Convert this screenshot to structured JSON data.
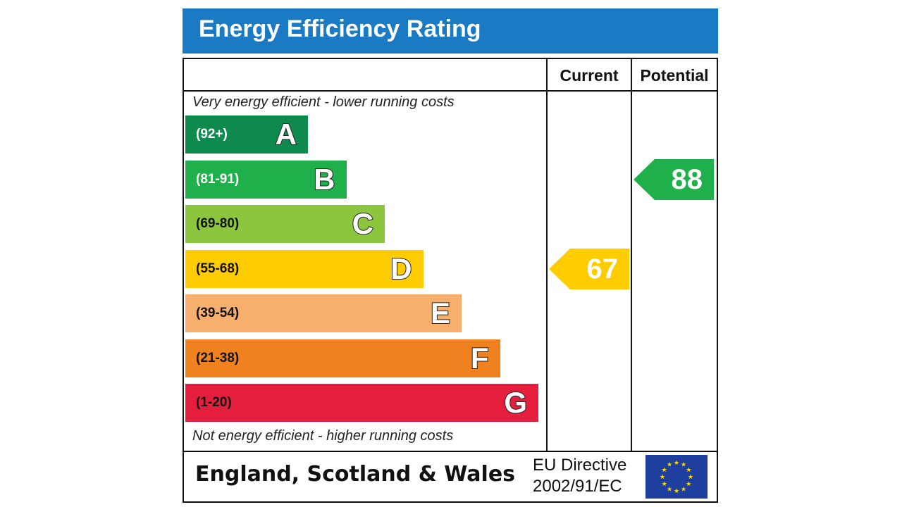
{
  "header": {
    "title": "Energy Efficiency Rating"
  },
  "columns": {
    "current": "Current",
    "potential": "Potential"
  },
  "notes": {
    "top": "Very energy efficient - lower running costs",
    "bottom": "Not energy efficient - higher running costs"
  },
  "footer": {
    "region": "England, Scotland & Wales",
    "directive_line1": "EU Directive",
    "directive_line2": "2002/91/EC"
  },
  "chart_data": {
    "type": "bar",
    "categories": [
      "A",
      "B",
      "C",
      "D",
      "E",
      "F",
      "G"
    ],
    "ranges": [
      "(92+)",
      "(81-91)",
      "(69-80)",
      "(55-68)",
      "(39-54)",
      "(21-38)",
      "(1-20)"
    ],
    "colors": [
      "#0f8a4f",
      "#20b04b",
      "#8cc63e",
      "#ffcc00",
      "#f7af6e",
      "#f0811f",
      "#e41e3c"
    ],
    "range_text_colors": [
      "#ffffff",
      "#ffffff",
      "#111111",
      "#111111",
      "#111111",
      "#111111",
      "#111111"
    ],
    "current": {
      "value": 67,
      "band": "D",
      "color": "#ffcc00"
    },
    "potential": {
      "value": 88,
      "band": "B",
      "color": "#20b04b"
    }
  }
}
